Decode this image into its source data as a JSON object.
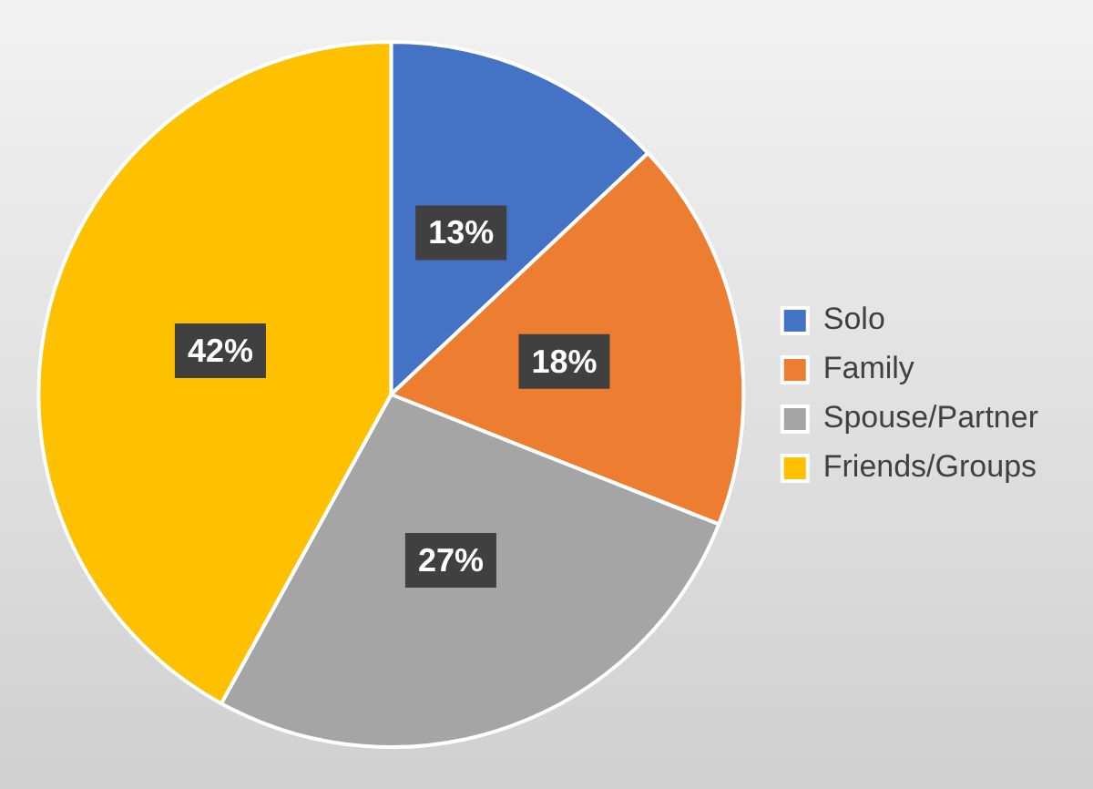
{
  "chart_data": {
    "type": "pie",
    "categories": [
      "Solo",
      "Family",
      "Spouse/Partner",
      "Friends/Groups"
    ],
    "values": [
      13,
      18,
      27,
      42
    ],
    "colors": [
      "#4472c4",
      "#ed7d31",
      "#a5a5a5",
      "#ffc000"
    ],
    "value_labels": [
      "13%",
      "18%",
      "27%",
      "42%"
    ],
    "legend": "right"
  }
}
